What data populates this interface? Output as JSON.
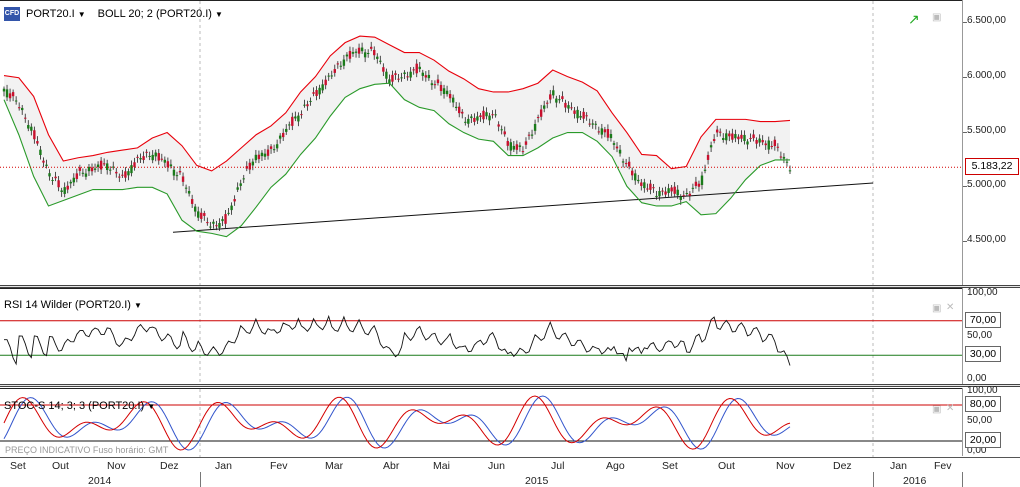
{
  "main_panel": {
    "symbol_label": "PORT20.I",
    "indicator_label": "BOLL 20; 2 (PORT20.I)",
    "price_ticks": [
      "6.500,00",
      "6.000,00",
      "5.500,00",
      "5.000,00",
      "4.500,00"
    ],
    "last_price": "5.183,22",
    "colors": {
      "upper_band": "#e8000b",
      "lower_band": "#2a9a2a",
      "candle_up": "#1a7a1a",
      "candle_down": "#c8102e",
      "band_fill": "#f2f2f2",
      "price_line": "#d40000"
    }
  },
  "rsi_panel": {
    "label": "RSI 14 Wilder (PORT20.I)",
    "ticks": [
      "100,00",
      "50,00",
      "0,00"
    ],
    "level_high": "70,00",
    "level_low": "30,00"
  },
  "stoc_panel": {
    "label": "STOC-S 14; 3; 3 (PORT20.I)",
    "ticks": [
      "100,00",
      "50,00",
      "0,00"
    ],
    "level_high": "80,00",
    "level_low": "20,00",
    "colors": {
      "k_line": "#d40000",
      "d_line": "#3355cc"
    }
  },
  "watermark": "PREÇO INDICATIVO     Fuso horário: GMT",
  "x_axis": {
    "months": [
      "Set",
      "Out",
      "Nov",
      "Dez",
      "Jan",
      "Fev",
      "Mar",
      "Abr",
      "Mai",
      "Jun",
      "Jul",
      "Ago",
      "Set",
      "Out",
      "Nov",
      "Dez",
      "Jan",
      "Fev"
    ],
    "years": [
      "2014",
      "2015",
      "2016"
    ]
  },
  "chart_data": {
    "type": "candlestick",
    "series": [
      {
        "name": "PORT20.I",
        "approx_close": [
          5900,
          5760,
          5480,
          5140,
          4960,
          5120,
          5170,
          5210,
          5080,
          5250,
          5310,
          5220,
          5090,
          4780,
          4650,
          4700,
          5060,
          5280,
          5320,
          5520,
          5680,
          5850,
          6010,
          6180,
          6250,
          6230,
          5980,
          6020,
          6080,
          5950,
          5860,
          5620,
          5630,
          5680,
          5400,
          5340,
          5620,
          5860,
          5740,
          5650,
          5550,
          5450,
          5200,
          5030,
          4950,
          4970,
          4920,
          5050,
          5500,
          5460,
          5450,
          5420,
          5380,
          5183
        ]
      },
      {
        "name": "BOLL upper",
        "approx_close": [
          6020,
          6000,
          5830,
          5480,
          5240,
          5270,
          5290,
          5320,
          5340,
          5360,
          5450,
          5500,
          5380,
          5200,
          5150,
          5240,
          5360,
          5480,
          5560,
          5680,
          5870,
          6010,
          6200,
          6320,
          6380,
          6370,
          6300,
          6230,
          6230,
          6160,
          6060,
          5990,
          5900,
          5870,
          5870,
          5900,
          5950,
          6070,
          6010,
          5960,
          5880,
          5680,
          5500,
          5300,
          5290,
          5170,
          5190,
          5460,
          5620,
          5620,
          5620,
          5600,
          5600,
          5610
        ]
      },
      {
        "name": "BOLL lower",
        "approx_close": [
          5800,
          5480,
          5100,
          4830,
          4880,
          4930,
          4980,
          4980,
          4980,
          5000,
          5000,
          4940,
          4700,
          4600,
          4580,
          4550,
          4650,
          4820,
          5000,
          5120,
          5300,
          5450,
          5650,
          5820,
          5900,
          5940,
          5950,
          5800,
          5730,
          5700,
          5580,
          5500,
          5440,
          5420,
          5290,
          5290,
          5360,
          5450,
          5500,
          5500,
          5420,
          5280,
          5010,
          4860,
          4830,
          4830,
          4870,
          4750,
          4760,
          4900,
          5070,
          5200,
          5250,
          5250
        ]
      },
      {
        "name": "Trendline",
        "points": [
          [
            0,
            4590
          ],
          [
            1,
            5040
          ]
        ]
      }
    ],
    "rsi": {
      "levels": [
        30,
        70
      ],
      "ylim": [
        0,
        100
      ]
    },
    "stochastic": {
      "levels": [
        20,
        80
      ],
      "ylim": [
        0,
        100
      ]
    },
    "ylim": [
      4100,
      6700
    ]
  }
}
